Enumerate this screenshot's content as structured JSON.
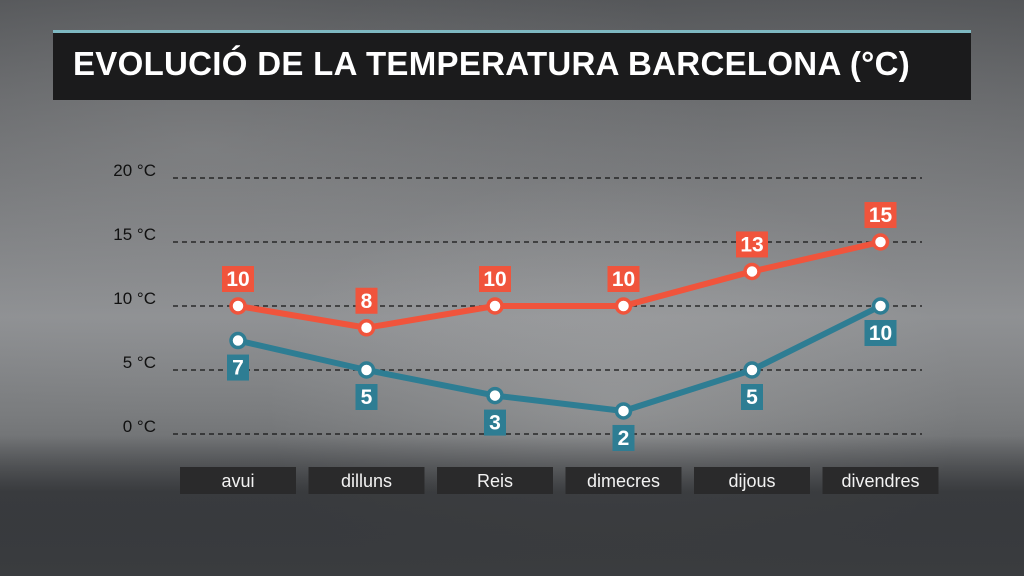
{
  "header": {
    "title": "EVOLUCIÓ DE LA TEMPERATURA BARCELONA (°C)"
  },
  "colors": {
    "max_series": "#f0543c",
    "min_series": "#2e7d93",
    "category_box": "#2a2a2b",
    "title_bar": "#1b1b1c",
    "title_accent": "#7fb9c2"
  },
  "chart_data": {
    "type": "line",
    "title": "EVOLUCIÓ DE LA TEMPERATURA BARCELONA (°C)",
    "categories": [
      "avui",
      "dilluns",
      "Reis",
      "dimecres",
      "dijous",
      "divendres"
    ],
    "y_ticks": [
      {
        "value": 0,
        "label": "0 °C"
      },
      {
        "value": 5,
        "label": "5 °C"
      },
      {
        "value": 10,
        "label": "10 °C"
      },
      {
        "value": 15,
        "label": "15 °C"
      },
      {
        "value": 20,
        "label": "20 °C"
      }
    ],
    "ylim": [
      0,
      20
    ],
    "grid": "dashed horizontal",
    "series": [
      {
        "key": "max",
        "color": "#f0543c",
        "values": [
          10,
          8.3,
          10,
          10,
          12.7,
          15
        ],
        "labels": [
          "10",
          "8",
          "10",
          "10",
          "13",
          "15"
        ],
        "label_position": "above"
      },
      {
        "key": "min",
        "color": "#2e7d93",
        "values": [
          7.3,
          5,
          3,
          1.8,
          5,
          10
        ],
        "labels": [
          "7",
          "5",
          "3",
          "2",
          "5",
          "10"
        ],
        "label_position": "below"
      }
    ]
  }
}
